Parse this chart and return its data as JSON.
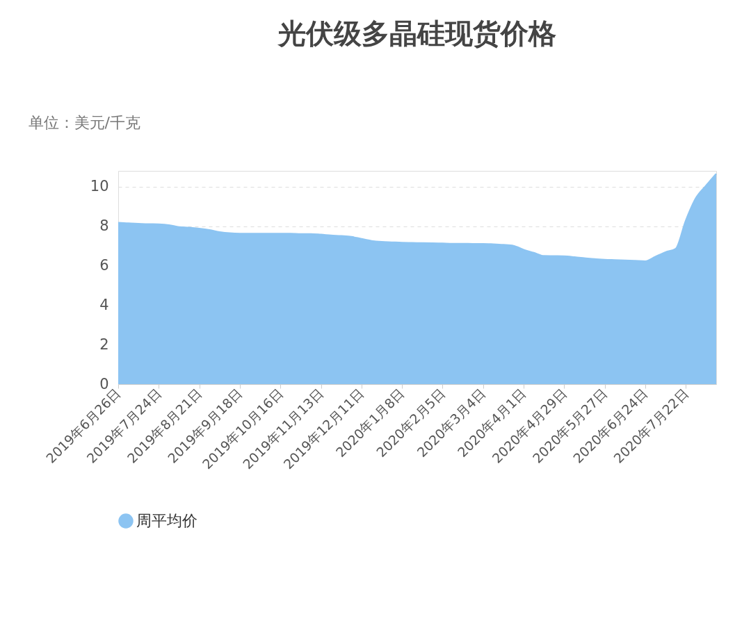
{
  "chart_data": {
    "type": "area",
    "title": "光伏级多晶硅现货价格",
    "ylabel": "单位：美元/千克",
    "categories": [
      "2019年6月26日",
      null,
      null,
      null,
      "2019年7月24日",
      null,
      null,
      null,
      "2019年8月21日",
      null,
      null,
      null,
      "2019年9月18日",
      null,
      null,
      null,
      "2019年10月16日",
      null,
      null,
      null,
      "2019年11月13日",
      null,
      null,
      null,
      "2019年12月11日",
      null,
      null,
      null,
      "2020年1月8日",
      null,
      null,
      null,
      "2020年2月5日",
      null,
      null,
      null,
      "2020年3月4日",
      null,
      null,
      null,
      "2020年4月1日",
      null,
      null,
      null,
      "2020年4月29日",
      null,
      null,
      null,
      "2020年5月27日",
      null,
      null,
      null,
      "2020年6月24日",
      null,
      null,
      null,
      "2020年7月22日",
      null,
      null,
      null
    ],
    "series": [
      {
        "name": "周平均价",
        "color": "#8cc4f2",
        "values": [
          8.17,
          8.14,
          8.12,
          8.1,
          8.09,
          8.05,
          7.95,
          7.92,
          7.87,
          7.8,
          7.7,
          7.64,
          7.62,
          7.62,
          7.62,
          7.62,
          7.62,
          7.62,
          7.6,
          7.6,
          7.57,
          7.53,
          7.5,
          7.46,
          7.35,
          7.25,
          7.2,
          7.18,
          7.16,
          7.15,
          7.14,
          7.13,
          7.12,
          7.11,
          7.11,
          7.1,
          7.1,
          7.08,
          7.05,
          7.0,
          6.8,
          6.65,
          6.49,
          6.48,
          6.47,
          6.43,
          6.38,
          6.33,
          6.3,
          6.28,
          6.26,
          6.24,
          6.22,
          6.45,
          6.68,
          6.85,
          8.28,
          9.42,
          10.05,
          10.65
        ]
      }
    ],
    "ylim": [
      0,
      10.8
    ],
    "yticks": [
      0,
      2,
      4,
      6,
      8,
      10
    ],
    "grid": "y",
    "legend": "bottom"
  }
}
